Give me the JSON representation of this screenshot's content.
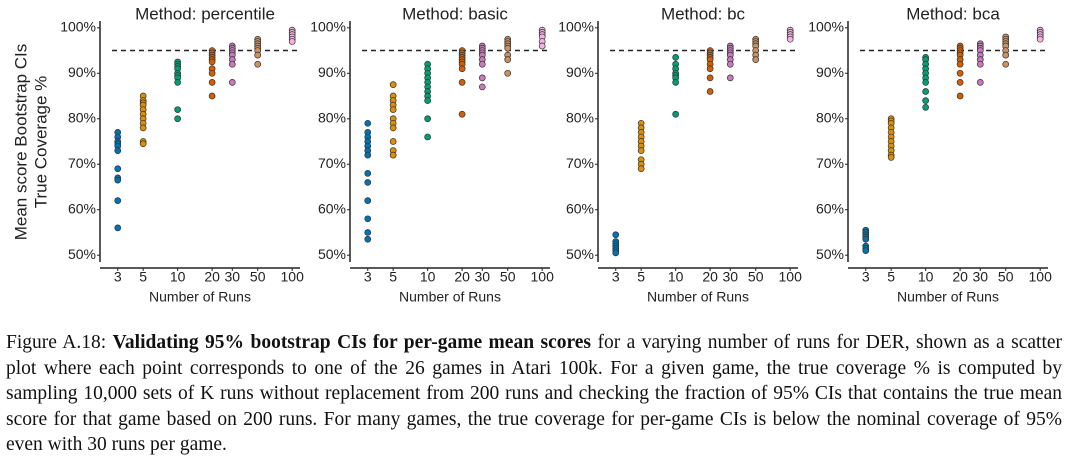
{
  "chart_data": [
    {
      "type": "scatter",
      "title": "Method: percentile",
      "xlabel": "Number of Runs",
      "ylabel": [
        "Mean score Bootstrap CIs",
        "True Coverage %"
      ],
      "log_x": true,
      "xlim": [
        2.1,
        117
      ],
      "xticks": [
        3,
        5,
        10,
        20,
        30,
        50,
        100
      ],
      "ylim": [
        48.5,
        101.5
      ],
      "yticks": [
        {
          "value": 50,
          "label": "50%"
        },
        {
          "value": 60,
          "label": "60%"
        },
        {
          "value": 70,
          "label": "70%"
        },
        {
          "value": 80,
          "label": "80%"
        },
        {
          "value": 90,
          "label": "90%"
        },
        {
          "value": 100,
          "label": "100%"
        }
      ],
      "hline": 95,
      "series": [
        {
          "x": 3,
          "color": "#0173B2",
          "values": [
            77,
            76,
            75,
            74.5,
            74,
            73,
            69,
            67,
            66.5,
            62,
            56
          ]
        },
        {
          "x": 5,
          "color": "#DE8F05",
          "values": [
            85,
            84,
            83.5,
            83,
            82,
            81,
            80,
            79,
            78,
            75,
            74.5
          ]
        },
        {
          "x": 10,
          "color": "#029E73",
          "values": [
            92.5,
            92,
            91.5,
            91,
            90,
            89.5,
            89,
            88,
            82,
            80
          ]
        },
        {
          "x": 20,
          "color": "#D55E00",
          "values": [
            95,
            94.5,
            94,
            93.5,
            93,
            92.5,
            91,
            90,
            88,
            85
          ]
        },
        {
          "x": 30,
          "color": "#CC78BC",
          "values": [
            96,
            95.5,
            95,
            94.5,
            94,
            93,
            92,
            88
          ]
        },
        {
          "x": 50,
          "color": "#CA9161",
          "values": [
            97.5,
            97,
            96.5,
            96,
            95.5,
            95,
            94,
            92
          ]
        },
        {
          "x": 100,
          "color": "#FBAFE4",
          "values": [
            99.5,
            99,
            98.5,
            98,
            97.5,
            97
          ]
        }
      ]
    },
    {
      "type": "scatter",
      "title": "Method: basic",
      "xlabel": "Number of Runs",
      "log_x": true,
      "xlim": [
        2.1,
        117
      ],
      "xticks": [
        3,
        5,
        10,
        20,
        30,
        50,
        100
      ],
      "ylim": [
        48.5,
        101.5
      ],
      "yticks": [
        {
          "value": 50,
          "label": "50%"
        },
        {
          "value": 60,
          "label": "60%"
        },
        {
          "value": 70,
          "label": "70%"
        },
        {
          "value": 80,
          "label": "80%"
        },
        {
          "value": 90,
          "label": "90%"
        },
        {
          "value": 100,
          "label": "100%"
        }
      ],
      "hline": 95,
      "series": [
        {
          "x": 3,
          "color": "#0173B2",
          "values": [
            79,
            77,
            76,
            75,
            74,
            73,
            72,
            68,
            66,
            62,
            58,
            55,
            53.5
          ]
        },
        {
          "x": 5,
          "color": "#DE8F05",
          "values": [
            87.5,
            85,
            84,
            83,
            82,
            80,
            79,
            78,
            75,
            73,
            72
          ]
        },
        {
          "x": 10,
          "color": "#029E73",
          "values": [
            92,
            91,
            90,
            89,
            88,
            87,
            86,
            85,
            84,
            80,
            76
          ]
        },
        {
          "x": 20,
          "color": "#D55E00",
          "values": [
            95,
            94.5,
            94,
            93.5,
            93,
            92.5,
            92,
            91,
            88,
            81
          ]
        },
        {
          "x": 30,
          "color": "#CC78BC",
          "values": [
            96,
            95.5,
            95,
            94.5,
            94,
            93,
            92,
            89,
            87
          ]
        },
        {
          "x": 50,
          "color": "#CA9161",
          "values": [
            97.5,
            97,
            96.5,
            96,
            95.5,
            94,
            93,
            90
          ]
        },
        {
          "x": 100,
          "color": "#FBAFE4",
          "values": [
            99.5,
            99,
            98.5,
            98,
            97,
            96
          ]
        }
      ]
    },
    {
      "type": "scatter",
      "title": "Method: bc",
      "xlabel": "Number of Runs",
      "log_x": true,
      "xlim": [
        2.1,
        117
      ],
      "xticks": [
        3,
        5,
        10,
        20,
        30,
        50,
        100
      ],
      "ylim": [
        48.5,
        101.5
      ],
      "yticks": [
        {
          "value": 50,
          "label": "50%"
        },
        {
          "value": 60,
          "label": "60%"
        },
        {
          "value": 70,
          "label": "70%"
        },
        {
          "value": 80,
          "label": "80%"
        },
        {
          "value": 90,
          "label": "90%"
        },
        {
          "value": 100,
          "label": "100%"
        }
      ],
      "hline": 95,
      "series": [
        {
          "x": 3,
          "color": "#0173B2",
          "values": [
            54.5,
            53,
            52.5,
            52,
            51.5,
            51,
            50.5
          ]
        },
        {
          "x": 5,
          "color": "#DE8F05",
          "values": [
            79,
            78,
            77,
            76,
            75,
            74,
            73,
            71,
            70,
            69
          ]
        },
        {
          "x": 10,
          "color": "#029E73",
          "values": [
            93.5,
            92,
            91,
            90,
            89.5,
            89,
            88,
            81
          ]
        },
        {
          "x": 20,
          "color": "#D55E00",
          "values": [
            95,
            94.5,
            94,
            93.5,
            93,
            92,
            91,
            89,
            86
          ]
        },
        {
          "x": 30,
          "color": "#CC78BC",
          "values": [
            96,
            95.5,
            95,
            94.5,
            94,
            93,
            92,
            89
          ]
        },
        {
          "x": 50,
          "color": "#CA9161",
          "values": [
            97.5,
            97,
            96.5,
            96,
            95,
            94,
            93
          ]
        },
        {
          "x": 100,
          "color": "#FBAFE4",
          "values": [
            99.5,
            99,
            98.5,
            98,
            97.5
          ]
        }
      ]
    },
    {
      "type": "scatter",
      "title": "Method: bca",
      "xlabel": "Number of Runs",
      "log_x": true,
      "xlim": [
        2.1,
        117
      ],
      "xticks": [
        3,
        5,
        10,
        20,
        30,
        50,
        100
      ],
      "ylim": [
        48.5,
        101.5
      ],
      "yticks": [
        {
          "value": 50,
          "label": "50%"
        },
        {
          "value": 60,
          "label": "60%"
        },
        {
          "value": 70,
          "label": "70%"
        },
        {
          "value": 80,
          "label": "80%"
        },
        {
          "value": 90,
          "label": "90%"
        },
        {
          "value": 100,
          "label": "100%"
        }
      ],
      "hline": 95,
      "series": [
        {
          "x": 3,
          "color": "#0173B2",
          "values": [
            55.5,
            55,
            54.5,
            54,
            53.5,
            52,
            51.5,
            51
          ]
        },
        {
          "x": 5,
          "color": "#DE8F05",
          "values": [
            80,
            79.5,
            79,
            78,
            77,
            76,
            75,
            74,
            73,
            72,
            71.5
          ]
        },
        {
          "x": 10,
          "color": "#029E73",
          "values": [
            93.5,
            93,
            92,
            91,
            90,
            89,
            88,
            86,
            84,
            82.5
          ]
        },
        {
          "x": 20,
          "color": "#D55E00",
          "values": [
            96,
            95.5,
            95,
            94.5,
            94,
            93,
            92,
            90,
            88,
            85
          ]
        },
        {
          "x": 30,
          "color": "#CC78BC",
          "values": [
            96.5,
            96,
            95.5,
            95,
            94,
            93,
            92,
            88
          ]
        },
        {
          "x": 50,
          "color": "#CA9161",
          "values": [
            98,
            97.5,
            97,
            96.5,
            96,
            95,
            94,
            92
          ]
        },
        {
          "x": 100,
          "color": "#FBAFE4",
          "values": [
            99.5,
            99,
            98.5,
            98,
            97.5
          ]
        }
      ]
    }
  ],
  "caption": {
    "label": "Figure A.18:",
    "bold": "Validating 95% bootstrap CIs for per-game mean scores",
    "text1": "for a varying number of runs for",
    "der": "DER",
    "text2": ", shown as a scatter plot where each point corresponds to one of the 26 games in Atari 100k. For a given game, the true coverage % is computed by sampling 10,000 sets of K runs without replacement from 200 runs and checking the fraction of 95% CIs that contains the true mean score for that game based on 200 runs. For many games, the true coverage for per-game CIs is below the nominal coverage of 95% even with 30 runs per game."
  }
}
